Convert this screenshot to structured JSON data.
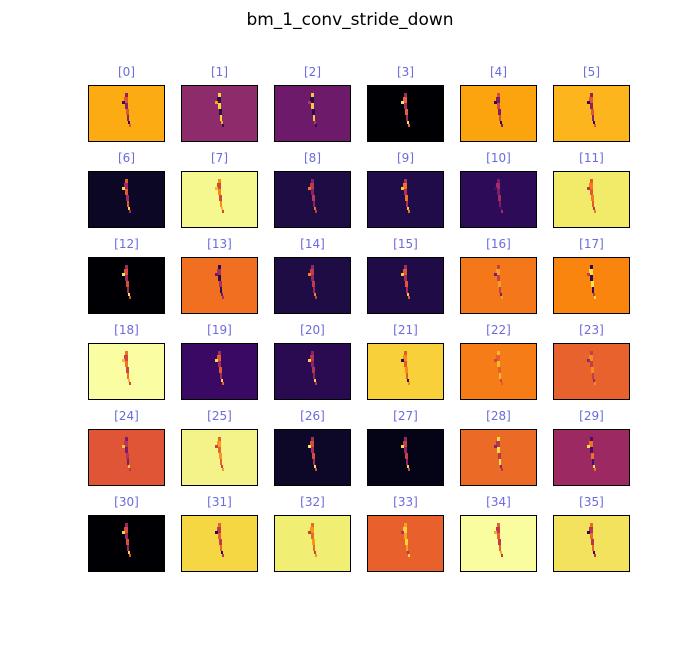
{
  "figure": {
    "title": "bm_1_conv_stride_down"
  },
  "chart_data": {
    "type": "heatmap",
    "title": "bm_1_conv_stride_down",
    "grid": {
      "rows": 6,
      "cols": 6
    },
    "colormap": "inferno",
    "panels": [
      {
        "label": "[0]",
        "bg": "#fcac12",
        "fig": [
          "#8a226a",
          "#e0562f",
          "#380b56"
        ]
      },
      {
        "label": "[1]",
        "bg": "#8e2b6b",
        "fig": [
          "#fdd13a",
          "#2c0b4e",
          "#f7a51a"
        ]
      },
      {
        "label": "[2]",
        "bg": "#6e1a6b",
        "fig": [
          "#f9c53a",
          "#2b0a4f",
          "#b03a5c"
        ]
      },
      {
        "label": "[3]",
        "bg": "#000004",
        "fig": [
          "#9e2a63",
          "#e9603e",
          "#f8e25a"
        ]
      },
      {
        "label": "[4]",
        "bg": "#fba40e",
        "fig": [
          "#d34b3e",
          "#7a1d6c",
          "#2a0b50"
        ]
      },
      {
        "label": "[5]",
        "bg": "#fcb51c",
        "fig": [
          "#892369",
          "#e35833",
          "#300a5c"
        ]
      },
      {
        "label": "[6]",
        "bg": "#0b0724",
        "fig": [
          "#e15a32",
          "#9c2a63",
          "#f9d050"
        ]
      },
      {
        "label": "[7]",
        "bg": "#f5f88f",
        "fig": [
          "#f88a11",
          "#d0493b",
          "#fbb732"
        ]
      },
      {
        "label": "[8]",
        "bg": "#1e0c45",
        "fig": [
          "#8a226a",
          "#bb3755",
          "#f3761a"
        ]
      },
      {
        "label": "[9]",
        "bg": "#210c4a",
        "fig": [
          "#ad305e",
          "#f2701e",
          "#f8c72b"
        ]
      },
      {
        "label": "[10]",
        "bg": "#2e0b58",
        "fig": [
          "#7a1d6c",
          "#a82c5f",
          "#4a0c6b"
        ]
      },
      {
        "label": "[11]",
        "bg": "#f2ea69",
        "fig": [
          "#e5582f",
          "#f47c1a",
          "#b93556"
        ]
      },
      {
        "label": "[12]",
        "bg": "#000004",
        "fig": [
          "#9c2a63",
          "#d64e3a",
          "#f7e55a"
        ]
      },
      {
        "label": "[13]",
        "bg": "#f06f20",
        "fig": [
          "#2c0a54",
          "#a8305f",
          "#71196e"
        ]
      },
      {
        "label": "[14]",
        "bg": "#1e0c45",
        "fig": [
          "#952767",
          "#c13a50",
          "#f2821c"
        ]
      },
      {
        "label": "[15]",
        "bg": "#1f0c46",
        "fig": [
          "#a32b61",
          "#e2562f",
          "#f9c93a"
        ]
      },
      {
        "label": "[16]",
        "bg": "#f4781a",
        "fig": [
          "#c64045",
          "#f1a02e",
          "#7a1c6c"
        ]
      },
      {
        "label": "[17]",
        "bg": "#f9850f",
        "fig": [
          "#2e0a5a",
          "#fce047",
          "#c73b49"
        ]
      },
      {
        "label": "[18]",
        "bg": "#fafda1",
        "fig": [
          "#f17222",
          "#cf4446",
          "#fbb42d"
        ]
      },
      {
        "label": "[19]",
        "bg": "#390963",
        "fig": [
          "#a52c5f",
          "#e55c30",
          "#f8d94a"
        ]
      },
      {
        "label": "[20]",
        "bg": "#2a0b51",
        "fig": [
          "#8d2369",
          "#b7344f",
          "#fbd140"
        ]
      },
      {
        "label": "[21]",
        "bg": "#f8d13a",
        "fig": [
          "#e25b2c",
          "#f48d1c",
          "#2b0a4e"
        ]
      },
      {
        "label": "[22]",
        "bg": "#f57c16",
        "fig": [
          "#f9b631",
          "#e65d2d",
          "#cf4446"
        ]
      },
      {
        "label": "[23]",
        "bg": "#e7622d",
        "fig": [
          "#c23d4e",
          "#f48c1e",
          "#962766"
        ]
      },
      {
        "label": "[24]",
        "bg": "#e05536",
        "fig": [
          "#7a1d6c",
          "#b93556",
          "#f9c435"
        ]
      },
      {
        "label": "[25]",
        "bg": "#f4f38a",
        "fig": [
          "#e86530",
          "#f89b1a",
          "#c84246"
        ]
      },
      {
        "label": "[26]",
        "bg": "#0d0828",
        "fig": [
          "#a52c5f",
          "#d74b3a",
          "#f2ea69"
        ]
      },
      {
        "label": "[27]",
        "bg": "#050316",
        "fig": [
          "#902568",
          "#c94147",
          "#f6d746"
        ]
      },
      {
        "label": "[28]",
        "bg": "#ea6a26",
        "fig": [
          "#fce047",
          "#b73552",
          "#8a226a"
        ]
      },
      {
        "label": "[29]",
        "bg": "#9c2962",
        "fig": [
          "#4a0c6b",
          "#f06f20",
          "#fce047"
        ]
      },
      {
        "label": "[30]",
        "bg": "#000004",
        "fig": [
          "#9a2864",
          "#d64e3a",
          "#fbd33c"
        ]
      },
      {
        "label": "[31]",
        "bg": "#f5d744",
        "fig": [
          "#e7622d",
          "#c13a50",
          "#2a0b50"
        ]
      },
      {
        "label": "[32]",
        "bg": "#f1ee74",
        "fig": [
          "#e86b25",
          "#f69a16",
          "#c43c4e"
        ]
      },
      {
        "label": "[33]",
        "bg": "#e8612c",
        "fig": [
          "#f6a121",
          "#fbd33c",
          "#b63355"
        ]
      },
      {
        "label": "[34]",
        "bg": "#fafca0",
        "fig": [
          "#e7622d",
          "#c13a50",
          "#f9a922"
        ]
      },
      {
        "label": "[35]",
        "bg": "#f3e25e",
        "fig": [
          "#e86b25",
          "#b93556",
          "#2a0b50"
        ]
      }
    ]
  }
}
